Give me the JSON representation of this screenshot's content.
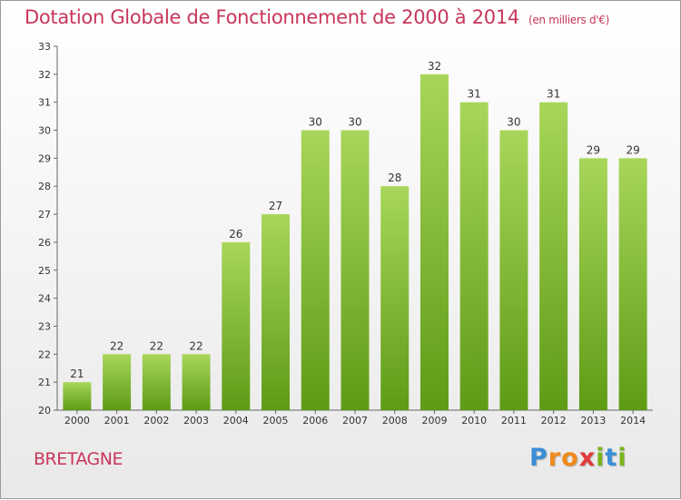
{
  "title": "Dotation Globale de Fonctionnement de 2000 à 2014",
  "subtitle": "(en milliers d'€)",
  "region": "BRETAGNE",
  "logo": {
    "letters": [
      "P",
      "r",
      "o",
      "x",
      "i",
      "t",
      "i"
    ],
    "colors": [
      "#3a8fd6",
      "#f08a1c",
      "#f08a1c",
      "#e23a3a",
      "#7ab51d",
      "#3a8fd6",
      "#7ab51d"
    ]
  },
  "colors": {
    "title": "#c8365a",
    "bar_top": "#a8d65a",
    "bar_bottom": "#5e9b15",
    "axis": "#666666"
  },
  "chart_data": {
    "type": "bar",
    "categories": [
      "2000",
      "2001",
      "2002",
      "2003",
      "2004",
      "2005",
      "2006",
      "2007",
      "2008",
      "2009",
      "2010",
      "2011",
      "2012",
      "2013",
      "2014"
    ],
    "values": [
      21,
      22,
      22,
      22,
      26,
      27,
      30,
      30,
      28,
      32,
      31,
      30,
      31,
      29,
      29
    ],
    "ylim": [
      20,
      33
    ],
    "yticks": [
      20,
      21,
      22,
      23,
      24,
      25,
      26,
      27,
      28,
      29,
      30,
      31,
      32,
      33
    ],
    "grid": false,
    "xlabel": "",
    "ylabel": ""
  }
}
